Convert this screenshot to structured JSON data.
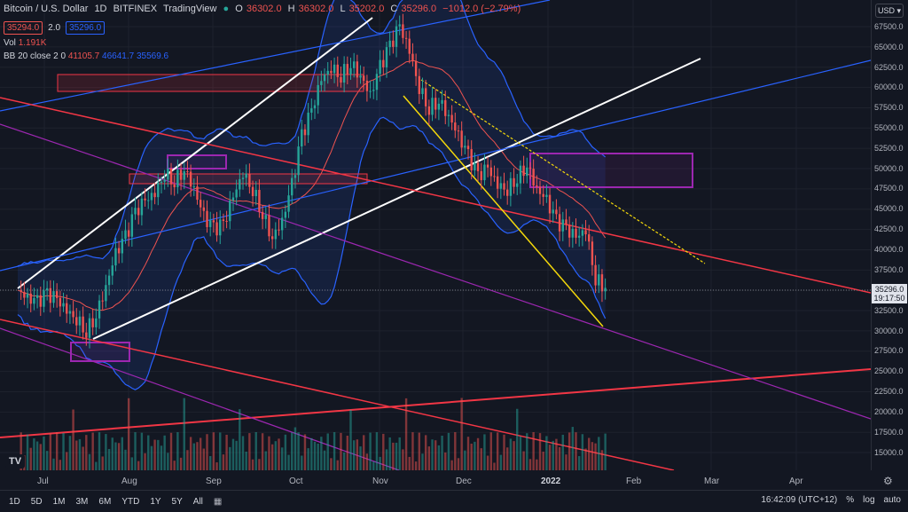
{
  "header": {
    "symbol": "Bitcoin / U.S. Dollar",
    "interval": "1D",
    "exchange": "BITFINEX",
    "source": "TradingView",
    "ohlc": {
      "o_label": "O",
      "o": "36302.0",
      "h_label": "H",
      "h": "36302.0",
      "l_label": "L",
      "l": "35202.0",
      "c_label": "C",
      "c": "35296.0",
      "change": "−1012.0 (−2.79%)"
    },
    "bid": "35294.0",
    "spread": "2.0",
    "ask": "35296.0"
  },
  "indicators": {
    "vol_label": "Vol",
    "vol_value": "1.191K",
    "bb_label": "BB 20 close 2 0",
    "bb_basis": "41105.7",
    "bb_upper": "46641.7",
    "bb_lower": "35569.6"
  },
  "currency": "USD",
  "price_axis": [
    "67500.0",
    "65000.0",
    "62500.0",
    "60000.0",
    "57500.0",
    "55000.0",
    "52500.0",
    "50000.0",
    "47500.0",
    "45000.0",
    "42500.0",
    "40000.0",
    "37500.0",
    "35000.0",
    "32500.0",
    "30000.0",
    "27500.0",
    "25000.0",
    "22500.0",
    "20000.0",
    "17500.0",
    "15000.0"
  ],
  "current_price": {
    "value": "35296.0",
    "countdown": "19:17:50"
  },
  "time_axis": [
    "Jul",
    "Aug",
    "Sep",
    "Oct",
    "Nov",
    "Dec",
    "2022",
    "Feb",
    "Mar",
    "Apr"
  ],
  "bottom_bar": {
    "intervals": [
      "1D",
      "5D",
      "1M",
      "3M",
      "6M",
      "YTD",
      "1Y",
      "5Y",
      "All"
    ],
    "clock": "16:42:09 (UTC+12)",
    "percent": "%",
    "log": "log",
    "auto": "auto"
  },
  "colors": {
    "up": "#26a69a",
    "down": "#ef5350",
    "bb": "#2962ff",
    "trend_white": "#ffffff",
    "trend_red": "#f23645",
    "trend_purple": "#9c27b0",
    "trend_yellow": "#f5d90a"
  },
  "chart_data": {
    "type": "candlestick",
    "x_axis": "date",
    "y_axis": "price (USD)",
    "yrange": [
      14000,
      69000
    ],
    "series": [
      {
        "name": "BTCUSD",
        "approx_close": [
          35000,
          34000,
          33500,
          34500,
          33800,
          32500,
          31500,
          30000,
          32000,
          35500,
          39500,
          41500,
          44500,
          46000,
          47000,
          49500,
          48500,
          50000,
          47500,
          44000,
          42500,
          43000,
          46500,
          49500,
          47500,
          44500,
          41500,
          43500,
          48000,
          54000,
          57000,
          61000,
          62500,
          61500,
          63000,
          61500,
          59000,
          62500,
          65000,
          67500,
          64500,
          60000,
          57500,
          58500,
          56500,
          54000,
          51500,
          49000,
          50000,
          48000,
          47500,
          49000,
          50500,
          47500,
          46000,
          43500,
          42500,
          41500,
          42500,
          36500,
          35300
        ]
      }
    ]
  }
}
